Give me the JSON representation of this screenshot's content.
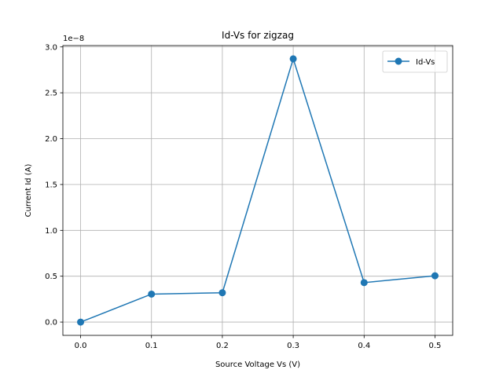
{
  "chart_data": {
    "type": "line",
    "title": "Id-Vs for zigzag",
    "xlabel": "Source Voltage Vs (V)",
    "ylabel": "Current Id (A)",
    "y_offset_label": "1e−8",
    "x": [
      0.0,
      0.1,
      0.2,
      0.3,
      0.4,
      0.5
    ],
    "series": [
      {
        "name": "Id-Vs",
        "values": [
          0.0,
          3.05e-09,
          3.2e-09,
          2.87e-08,
          4.3e-09,
          5.05e-09
        ],
        "color": "#1f77b4",
        "marker": "circle"
      }
    ],
    "xlim": [
      -0.025,
      0.525
    ],
    "ylim": [
      -1.45e-09,
      3.015e-08
    ],
    "x_ticks": [
      0.0,
      0.1,
      0.2,
      0.3,
      0.4,
      0.5
    ],
    "x_tick_labels": [
      "0.0",
      "0.1",
      "0.2",
      "0.3",
      "0.4",
      "0.5"
    ],
    "y_ticks": [
      0.0,
      5e-09,
      1e-08,
      1.5e-08,
      2e-08,
      2.5e-08,
      3e-08
    ],
    "y_tick_labels": [
      "0.0",
      "0.5",
      "1.0",
      "1.5",
      "2.0",
      "2.5",
      "3.0"
    ],
    "grid": true,
    "legend_position": "top-right"
  }
}
